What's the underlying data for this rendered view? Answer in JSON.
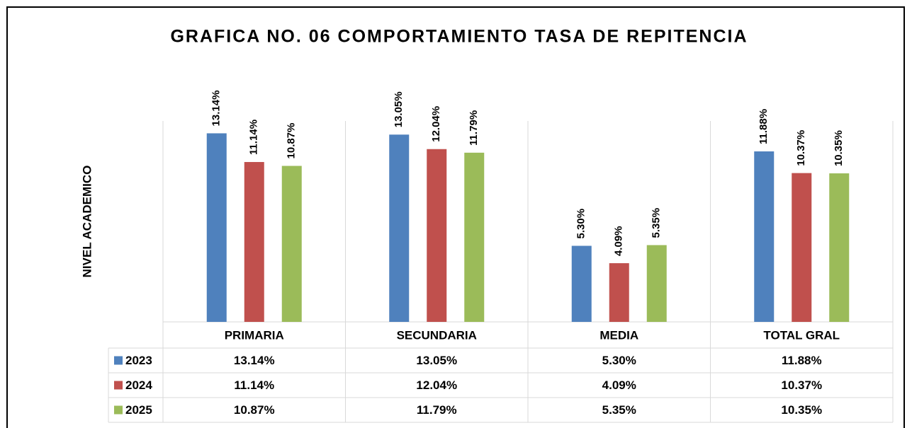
{
  "chart_data": {
    "type": "bar",
    "title": "GRAFICA NO. 06 COMPORTAMIENTO TASA DE REPITENCIA",
    "ylabel": "NIVEL ACADEMICO",
    "categories": [
      "PRIMARIA",
      "SECUNDARIA",
      "MEDIA",
      "TOTAL GRAL"
    ],
    "series": [
      {
        "name": "2023",
        "color": "#4f81bd",
        "values": [
          13.14,
          13.05,
          5.3,
          11.88
        ],
        "value_labels": [
          "13.14%",
          "13.05%",
          "5.30%",
          "11.88%"
        ]
      },
      {
        "name": "2024",
        "color": "#c0504d",
        "values": [
          11.14,
          12.04,
          4.09,
          10.37
        ],
        "value_labels": [
          "11.14%",
          "12.04%",
          "4.09%",
          "10.37%"
        ]
      },
      {
        "name": "2025",
        "color": "#9bbb59",
        "values": [
          10.87,
          11.79,
          5.35,
          10.35
        ],
        "value_labels": [
          "10.87%",
          "11.79%",
          "5.35%",
          "10.35%"
        ]
      }
    ],
    "ylim": [
      0,
      14
    ]
  }
}
